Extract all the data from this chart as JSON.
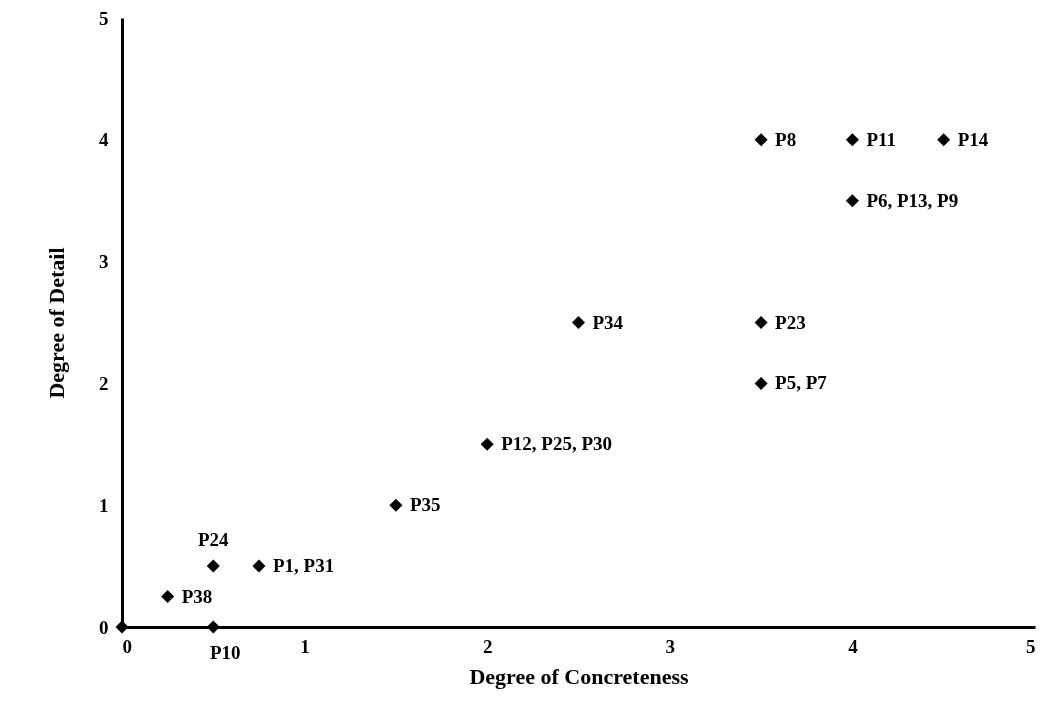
{
  "chart_data": {
    "type": "scatter",
    "xlabel": "Degree of Concreteness",
    "ylabel": "Degree of Detail",
    "x": [
      0,
      0.5,
      0.25,
      0.5,
      0.75,
      1.5,
      2,
      2.5,
      3.5,
      3.5,
      3.5,
      4,
      4.5,
      4
    ],
    "values": [
      0,
      0,
      0.25,
      0.5,
      0.5,
      1,
      1.5,
      2.5,
      2.5,
      2,
      4,
      4,
      4,
      3.5
    ],
    "color": "#000000",
    "marker": "diamond",
    "grid": false,
    "xlim": [
      0,
      5
    ],
    "ylim": [
      0,
      5
    ],
    "xticks": [
      0,
      1,
      2,
      3,
      4,
      5
    ],
    "yticks": [
      0,
      1,
      2,
      3,
      4,
      5
    ],
    "annotations": [
      {
        "text": "P10",
        "x": 0.5,
        "y": 0
      },
      {
        "text": "P38",
        "x": 0.25,
        "y": 0.25
      },
      {
        "text": "P24",
        "x": 0.5,
        "y": 0.5
      },
      {
        "text": "P1, P31",
        "x": 0.75,
        "y": 0.5
      },
      {
        "text": "P35",
        "x": 1.5,
        "y": 1
      },
      {
        "text": "P12, P25, P30",
        "x": 2,
        "y": 1.5
      },
      {
        "text": "P34",
        "x": 2.5,
        "y": 2.5
      },
      {
        "text": "P23",
        "x": 3.5,
        "y": 2.5
      },
      {
        "text": "P5, P7",
        "x": 3.5,
        "y": 2
      },
      {
        "text": "P8",
        "x": 3.5,
        "y": 4
      },
      {
        "text": "P11",
        "x": 4,
        "y": 4
      },
      {
        "text": "P14",
        "x": 4.5,
        "y": 4
      },
      {
        "text": "P6, P13, P9",
        "x": 4,
        "y": 3.5
      }
    ]
  }
}
